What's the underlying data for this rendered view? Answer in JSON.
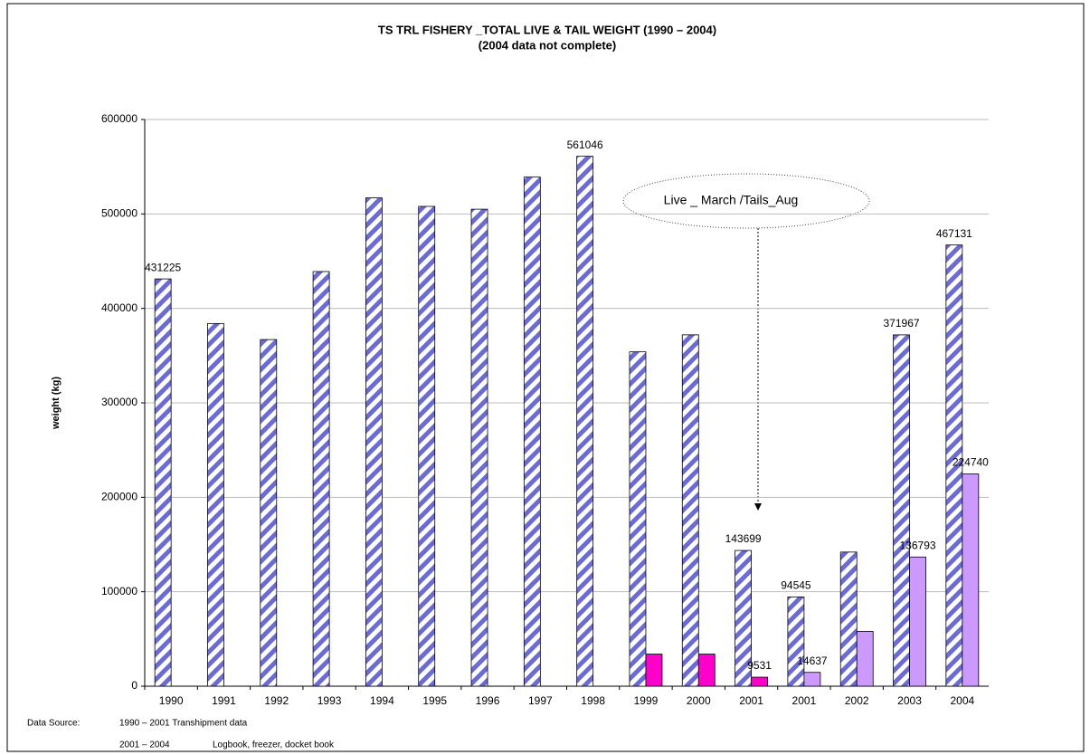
{
  "chart_data": {
    "type": "bar",
    "title": "TS TRL FISHERY _TOTAL LIVE & TAIL WEIGHT (1990 – 2004)",
    "subtitle": "(2004 data not complete)",
    "y_label": "weight (kg)",
    "categories": [
      "1990",
      "1991",
      "1992",
      "1993",
      "1994",
      "1995",
      "1996",
      "1997",
      "1998",
      "1999",
      "2000",
      "2001",
      "2001",
      "2002",
      "2003",
      "2004"
    ],
    "series": [
      {
        "color": "#6b6bd6",
        "hatch": true,
        "values": [
          431225,
          384000,
          367000,
          439000,
          517000,
          508000,
          505000,
          539000,
          561046,
          354000,
          372000,
          143699,
          94545,
          142000,
          371967,
          467131
        ],
        "show_labels": [
          true,
          false,
          false,
          false,
          false,
          false,
          false,
          false,
          true,
          false,
          false,
          true,
          true,
          false,
          true,
          true
        ]
      },
      {
        "colors": [
          null,
          null,
          null,
          null,
          null,
          null,
          null,
          null,
          null,
          "#ff00cc",
          "#ff00cc",
          "#ff00cc",
          "#cc99ff",
          "#cc99ff",
          "#cc99ff",
          "#cc99ff"
        ],
        "values": [
          null,
          null,
          null,
          null,
          null,
          null,
          null,
          null,
          null,
          34000,
          34000,
          9531,
          14637,
          58000,
          136793,
          224740
        ],
        "show_labels": [
          false,
          false,
          false,
          false,
          false,
          false,
          false,
          false,
          false,
          false,
          false,
          true,
          true,
          false,
          true,
          true
        ]
      }
    ],
    "ylim": [
      0,
      600000
    ],
    "yticks": [
      0,
      100000,
      200000,
      300000,
      400000,
      500000,
      600000
    ],
    "grid": true,
    "annotation": "Live _ March /Tails_Aug",
    "footer": [
      "Data Source:",
      "1990 – 2001 Transhipment data",
      "2001 – 2004",
      "Logbook, freezer, docket book"
    ]
  }
}
